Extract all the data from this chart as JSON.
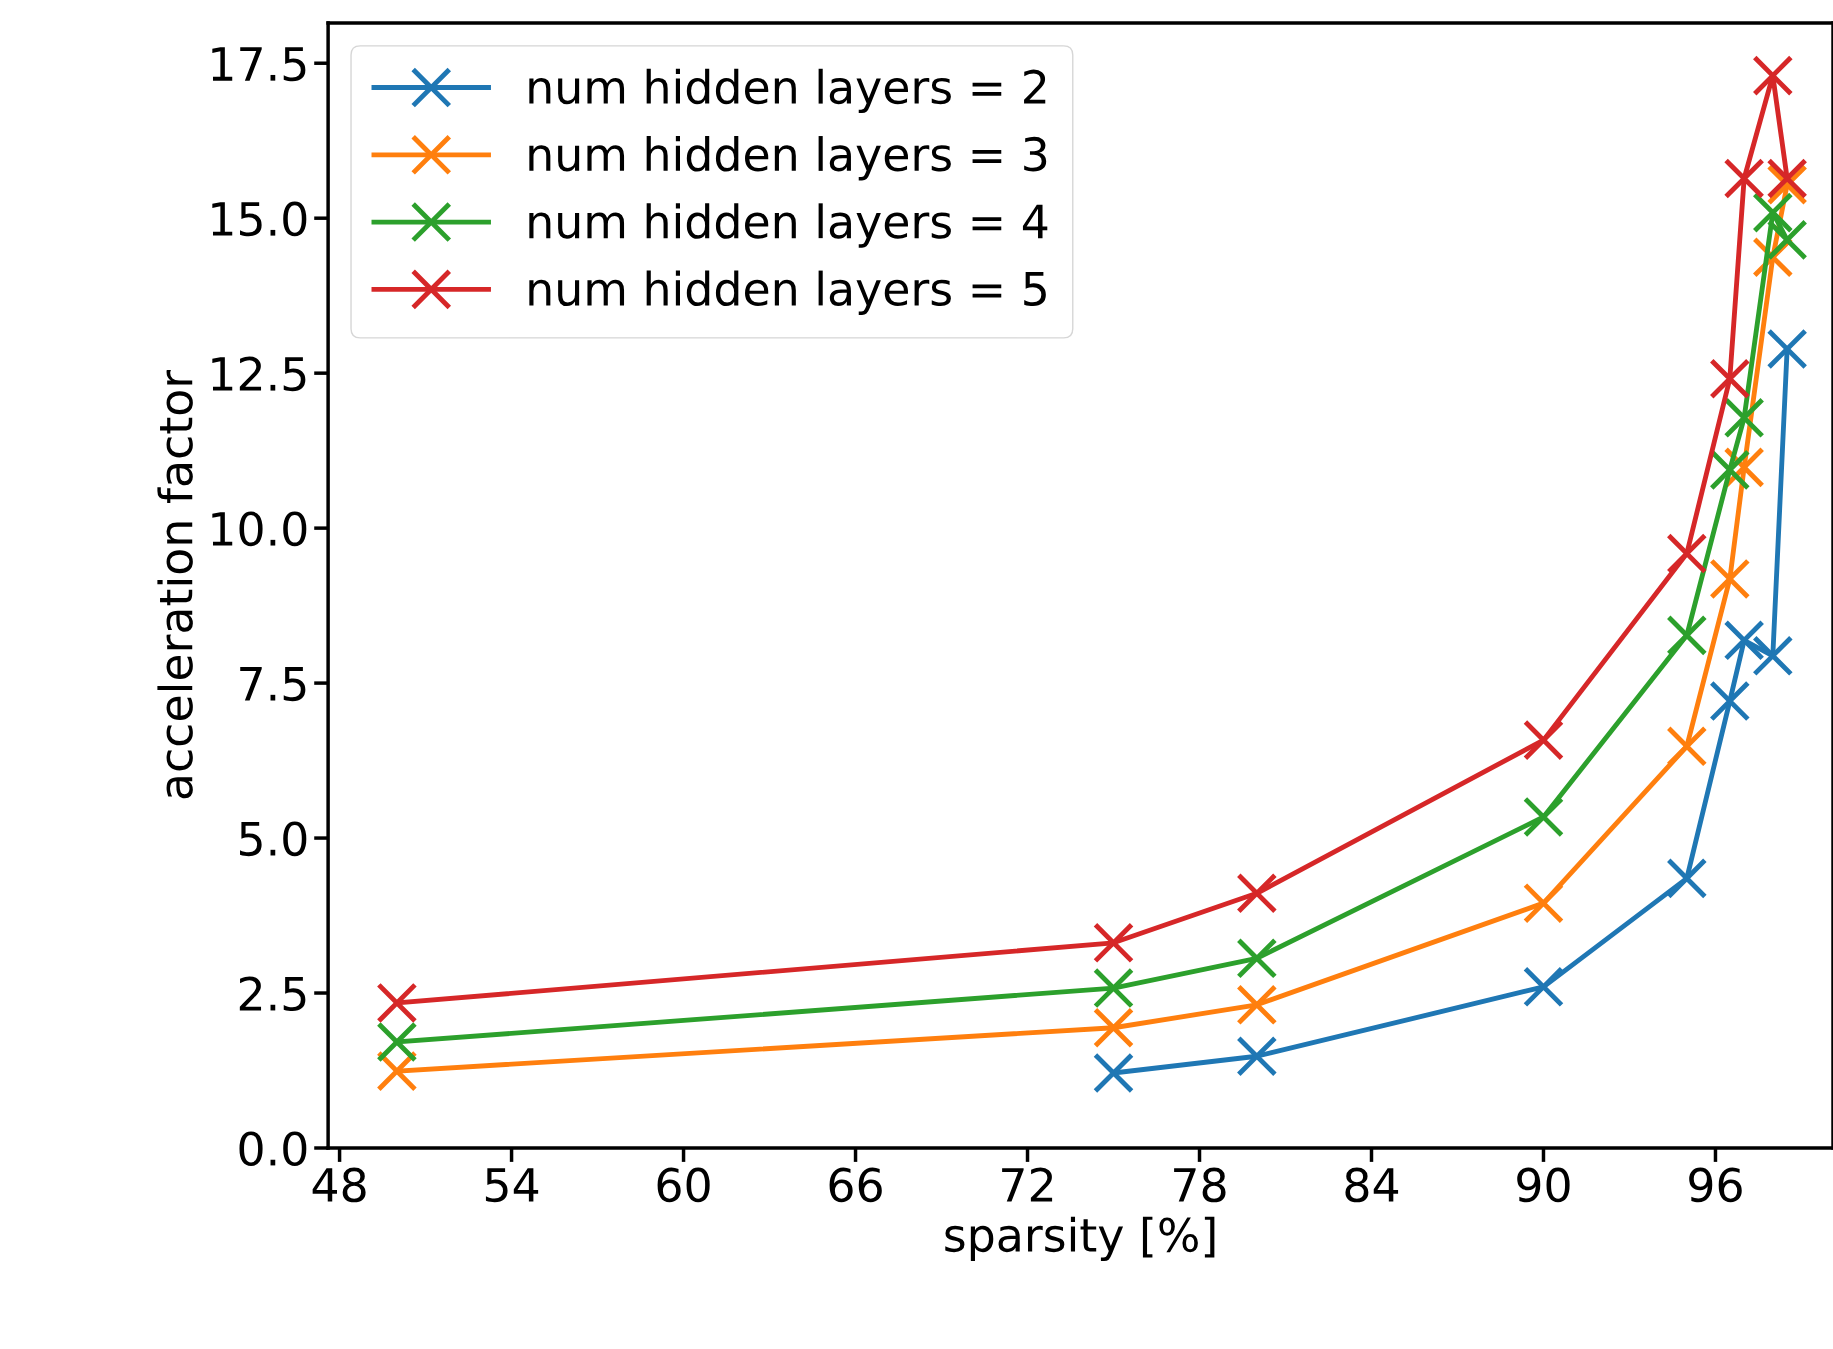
{
  "chart_data": {
    "type": "line",
    "xlabel": "sparsity [%]",
    "ylabel": "acceleration factor",
    "series": [
      {
        "name": "num hidden layers = 2",
        "color": "#1f77b4",
        "x": [
          75,
          80,
          90,
          95,
          96.5,
          97,
          98,
          98.5
        ],
        "values": [
          1.21,
          1.48,
          2.6,
          4.35,
          7.21,
          8.19,
          7.94,
          12.89
        ]
      },
      {
        "name": "num hidden layers = 3",
        "color": "#ff7f0e",
        "x": [
          50,
          75,
          80,
          90,
          95,
          96.5,
          97,
          98,
          98.5
        ],
        "values": [
          1.24,
          1.94,
          2.31,
          3.95,
          6.48,
          9.18,
          10.98,
          14.37,
          15.54
        ]
      },
      {
        "name": "num hidden layers = 4",
        "color": "#2ca02c",
        "x": [
          50,
          75,
          80,
          90,
          95,
          96.5,
          97,
          98,
          98.5
        ],
        "values": [
          1.71,
          2.58,
          3.06,
          5.34,
          8.27,
          10.94,
          11.78,
          15.09,
          14.65
        ]
      },
      {
        "name": "num hidden layers = 5",
        "color": "#d62728",
        "x": [
          50,
          75,
          80,
          90,
          95,
          96.5,
          97,
          98,
          98.5
        ],
        "values": [
          2.34,
          3.31,
          4.11,
          6.58,
          9.59,
          12.41,
          15.64,
          17.3,
          15.64
        ]
      }
    ],
    "xlim": [
      47.6,
      100.1
    ],
    "xticks": [
      48,
      54,
      60,
      66,
      72,
      78,
      84,
      90,
      96
    ],
    "ylim": [
      0,
      18.15
    ],
    "yticks": [
      {
        "value": 0,
        "label": "0.0"
      },
      {
        "value": 2.5,
        "label": "2.5"
      },
      {
        "value": 5,
        "label": "5.0"
      },
      {
        "value": 7.5,
        "label": "7.5"
      },
      {
        "value": 10,
        "label": "10.0"
      },
      {
        "value": 12.5,
        "label": "12.5"
      },
      {
        "value": 15,
        "label": "15.0"
      },
      {
        "value": 17.5,
        "label": "17.5"
      }
    ],
    "marker": "cross",
    "line_style": "solid",
    "grid": false,
    "legend": "top left"
  }
}
